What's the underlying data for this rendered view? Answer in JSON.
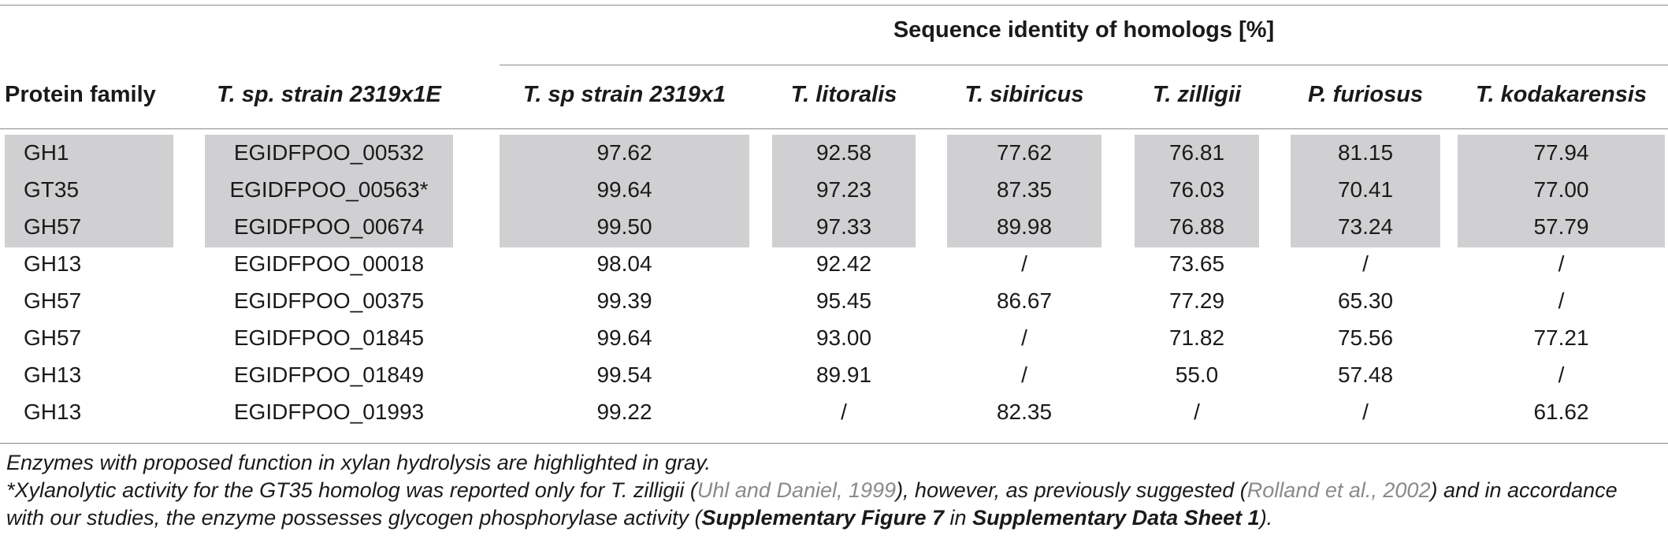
{
  "group_header": "Sequence identity of homologs [%]",
  "columns": {
    "protein_family": "Protein family",
    "strain_e": "T. sp. strain 2319x1E",
    "strain": "T. sp strain 2319x1",
    "litoralis": "T. litoralis",
    "sibiricus": "T. sibiricus",
    "zilligii": "T. zilligii",
    "furiosus": "P. furiosus",
    "kodakarensis": "T. kodakarensis"
  },
  "rows": [
    {
      "family": "GH1",
      "id": "EGIDFPOO_00532",
      "v": [
        "97.62",
        "92.58",
        "77.62",
        "76.81",
        "81.15",
        "77.94"
      ],
      "highlight": true
    },
    {
      "family": "GT35",
      "id": "EGIDFPOO_00563*",
      "v": [
        "99.64",
        "97.23",
        "87.35",
        "76.03",
        "70.41",
        "77.00"
      ],
      "highlight": true
    },
    {
      "family": "GH57",
      "id": "EGIDFPOO_00674",
      "v": [
        "99.50",
        "97.33",
        "89.98",
        "76.88",
        "73.24",
        "57.79"
      ],
      "highlight": true
    },
    {
      "family": "GH13",
      "id": "EGIDFPOO_00018",
      "v": [
        "98.04",
        "92.42",
        "/",
        "73.65",
        "/",
        "/"
      ],
      "highlight": false
    },
    {
      "family": "GH57",
      "id": "EGIDFPOO_00375",
      "v": [
        "99.39",
        "95.45",
        "86.67",
        "77.29",
        "65.30",
        "/"
      ],
      "highlight": false
    },
    {
      "family": "GH57",
      "id": "EGIDFPOO_01845",
      "v": [
        "99.64",
        "93.00",
        "/",
        "71.82",
        "75.56",
        "77.21"
      ],
      "highlight": false
    },
    {
      "family": "GH13",
      "id": "EGIDFPOO_01849",
      "v": [
        "99.54",
        "89.91",
        "/",
        "55.0",
        "57.48",
        "/"
      ],
      "highlight": false
    },
    {
      "family": "GH13",
      "id": "EGIDFPOO_01993",
      "v": [
        "99.22",
        "/",
        "82.35",
        "/",
        "/",
        "61.62"
      ],
      "highlight": false
    }
  ],
  "footnotes": {
    "line1": "Enzymes with proposed function in xylan hydrolysis are highlighted in gray.",
    "line2_a": "*Xylanolytic activity for the GT35 homolog was reported only for T. zilligii (",
    "line2_ref1": "Uhl and Daniel, 1999",
    "line2_b": "), however, as previously suggested (",
    "line2_ref2": "Rolland et al., 2002",
    "line2_c": ") and in accordance",
    "line3_a": "with our studies, the enzyme possesses glycogen phosphorylase activity (",
    "line3_b1": "Supplementary Figure 7",
    "line3_mid": " in ",
    "line3_b2": "Supplementary Data Sheet 1",
    "line3_c": ")."
  }
}
